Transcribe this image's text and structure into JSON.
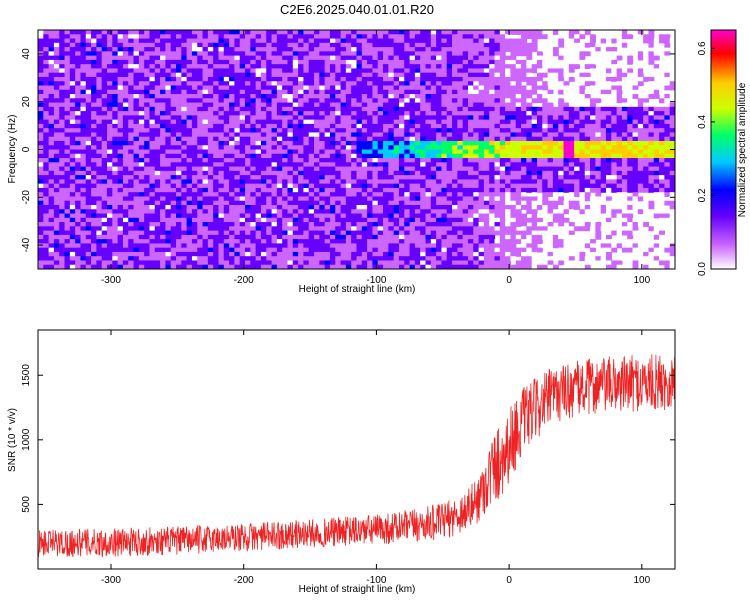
{
  "title": "C2E6.2025.040.01.01.R20",
  "chart_data": [
    {
      "type": "heatmap",
      "xlabel": "Height of straight line (km)",
      "ylabel": "Frequency (Hz)",
      "xlim": [
        -355,
        125
      ],
      "ylim": [
        -50,
        50
      ],
      "x_ticks": [
        -300,
        -200,
        -100,
        0,
        100
      ],
      "y_ticks": [
        -40,
        -20,
        0,
        20,
        40
      ],
      "colorbar": {
        "label": "Normalized spectral amplitude",
        "range": [
          0.0,
          0.65
        ],
        "ticks": [
          "0.0",
          "0.2",
          "0.4",
          "0.6"
        ],
        "colors": [
          "#ffffff",
          "#cc66ff",
          "#6600ff",
          "#0000ff",
          "#00ccff",
          "#00ff66",
          "#ccff00",
          "#ffcc00",
          "#ff0000",
          "#ff00cc"
        ]
      },
      "signal_band": {
        "frequency_hz": 0,
        "from_km": -115,
        "to_km": 125,
        "peak_km": 45,
        "peak_value": 0.62
      },
      "noise_floor": {
        "mean_value": 0.1
      }
    },
    {
      "type": "line",
      "xlabel": "Height of straight line (km)",
      "ylabel": "SNR (10 * v/v)",
      "xlim": [
        -355,
        125
      ],
      "ylim": [
        0,
        1850
      ],
      "x_ticks": [
        -300,
        -200,
        -100,
        0,
        100
      ],
      "y_ticks": [
        500,
        1000,
        1500
      ],
      "color": "#ee2222",
      "series": [
        {
          "x": [
            -355,
            -300,
            -250,
            -200,
            -150,
            -100,
            -75,
            -50,
            -40,
            -30,
            -25,
            -20,
            -15,
            -10,
            -5,
            0,
            5,
            10,
            20,
            30,
            40,
            60,
            80,
            100,
            125
          ],
          "mean": [
            200,
            205,
            220,
            245,
            275,
            305,
            330,
            370,
            410,
            470,
            520,
            610,
            720,
            800,
            870,
            960,
            1050,
            1140,
            1240,
            1320,
            1370,
            1410,
            1430,
            1440,
            1450
          ],
          "spread": [
            110,
            110,
            110,
            110,
            110,
            120,
            130,
            140,
            150,
            170,
            180,
            220,
            260,
            300,
            300,
            300,
            280,
            260,
            240,
            230,
            220,
            220,
            220,
            220,
            220
          ]
        }
      ]
    }
  ]
}
